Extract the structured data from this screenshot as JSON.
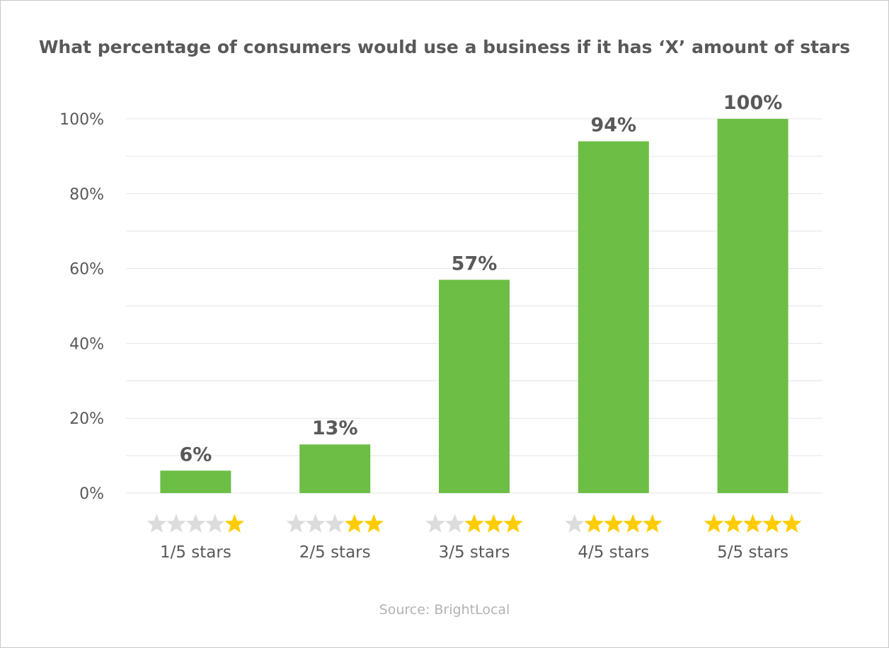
{
  "chart_data": {
    "type": "bar",
    "title": "What percentage of consumers would use a business if it has ‘X’ amount of stars",
    "xlabel": "",
    "ylabel": "",
    "categories": [
      "1/5 stars",
      "2/5 stars",
      "3/5 stars",
      "4/5 stars",
      "5/5 stars"
    ],
    "star_ratings": [
      1,
      2,
      3,
      4,
      5
    ],
    "max_stars": 5,
    "values": [
      6,
      13,
      57,
      94,
      100
    ],
    "data_labels": [
      "6%",
      "13%",
      "57%",
      "94%",
      "100%"
    ],
    "ylim": [
      0,
      100
    ],
    "y_ticks": [
      0,
      20,
      40,
      60,
      80,
      100
    ],
    "y_tick_labels": [
      "0%",
      "20%",
      "40%",
      "60%",
      "80%",
      "100%"
    ],
    "grid": true,
    "minor_grid_step": 10,
    "legend": "none",
    "source": "Source: BrightLocal"
  },
  "colors": {
    "bar": "#6dbe45",
    "star_filled": "#ffcc00",
    "star_empty": "#dcdcdc",
    "gridline": "#e4e4e4",
    "text": "#595959",
    "source_text": "#b3b3b3"
  }
}
